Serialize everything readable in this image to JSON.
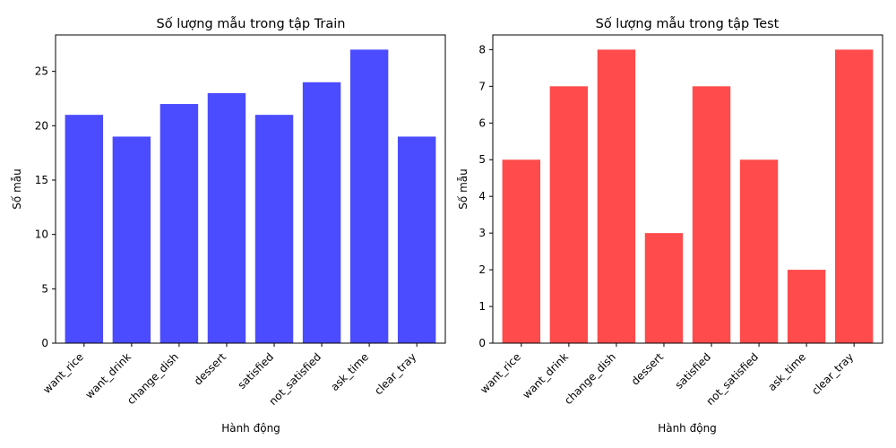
{
  "chart_data": [
    {
      "type": "bar",
      "title": "Số lượng mẫu trong tập Train",
      "xlabel": "Hành động",
      "ylabel": "Số mẫu",
      "categories": [
        "want_rice",
        "want_drink",
        "change_dish",
        "dessert",
        "satisfied",
        "not_satisfied",
        "ask_time",
        "clear_tray"
      ],
      "values": [
        21,
        19,
        22,
        23,
        21,
        24,
        27,
        19
      ],
      "ylim": [
        0,
        28.35
      ],
      "yticks": [
        0,
        5,
        10,
        15,
        20,
        25
      ],
      "color": "#4b4bff",
      "grid": false
    },
    {
      "type": "bar",
      "title": "Số lượng mẫu trong tập Test",
      "xlabel": "Hành động",
      "ylabel": "Số mẫu",
      "categories": [
        "want_rice",
        "want_drink",
        "change_dish",
        "dessert",
        "satisfied",
        "not_satisfied",
        "ask_time",
        "clear_tray"
      ],
      "values": [
        5,
        7,
        8,
        3,
        7,
        5,
        2,
        8
      ],
      "ylim": [
        0,
        8.4
      ],
      "yticks": [
        0,
        1,
        2,
        3,
        4,
        5,
        6,
        7,
        8
      ],
      "color": "#ff4b4b",
      "grid": false
    }
  ]
}
